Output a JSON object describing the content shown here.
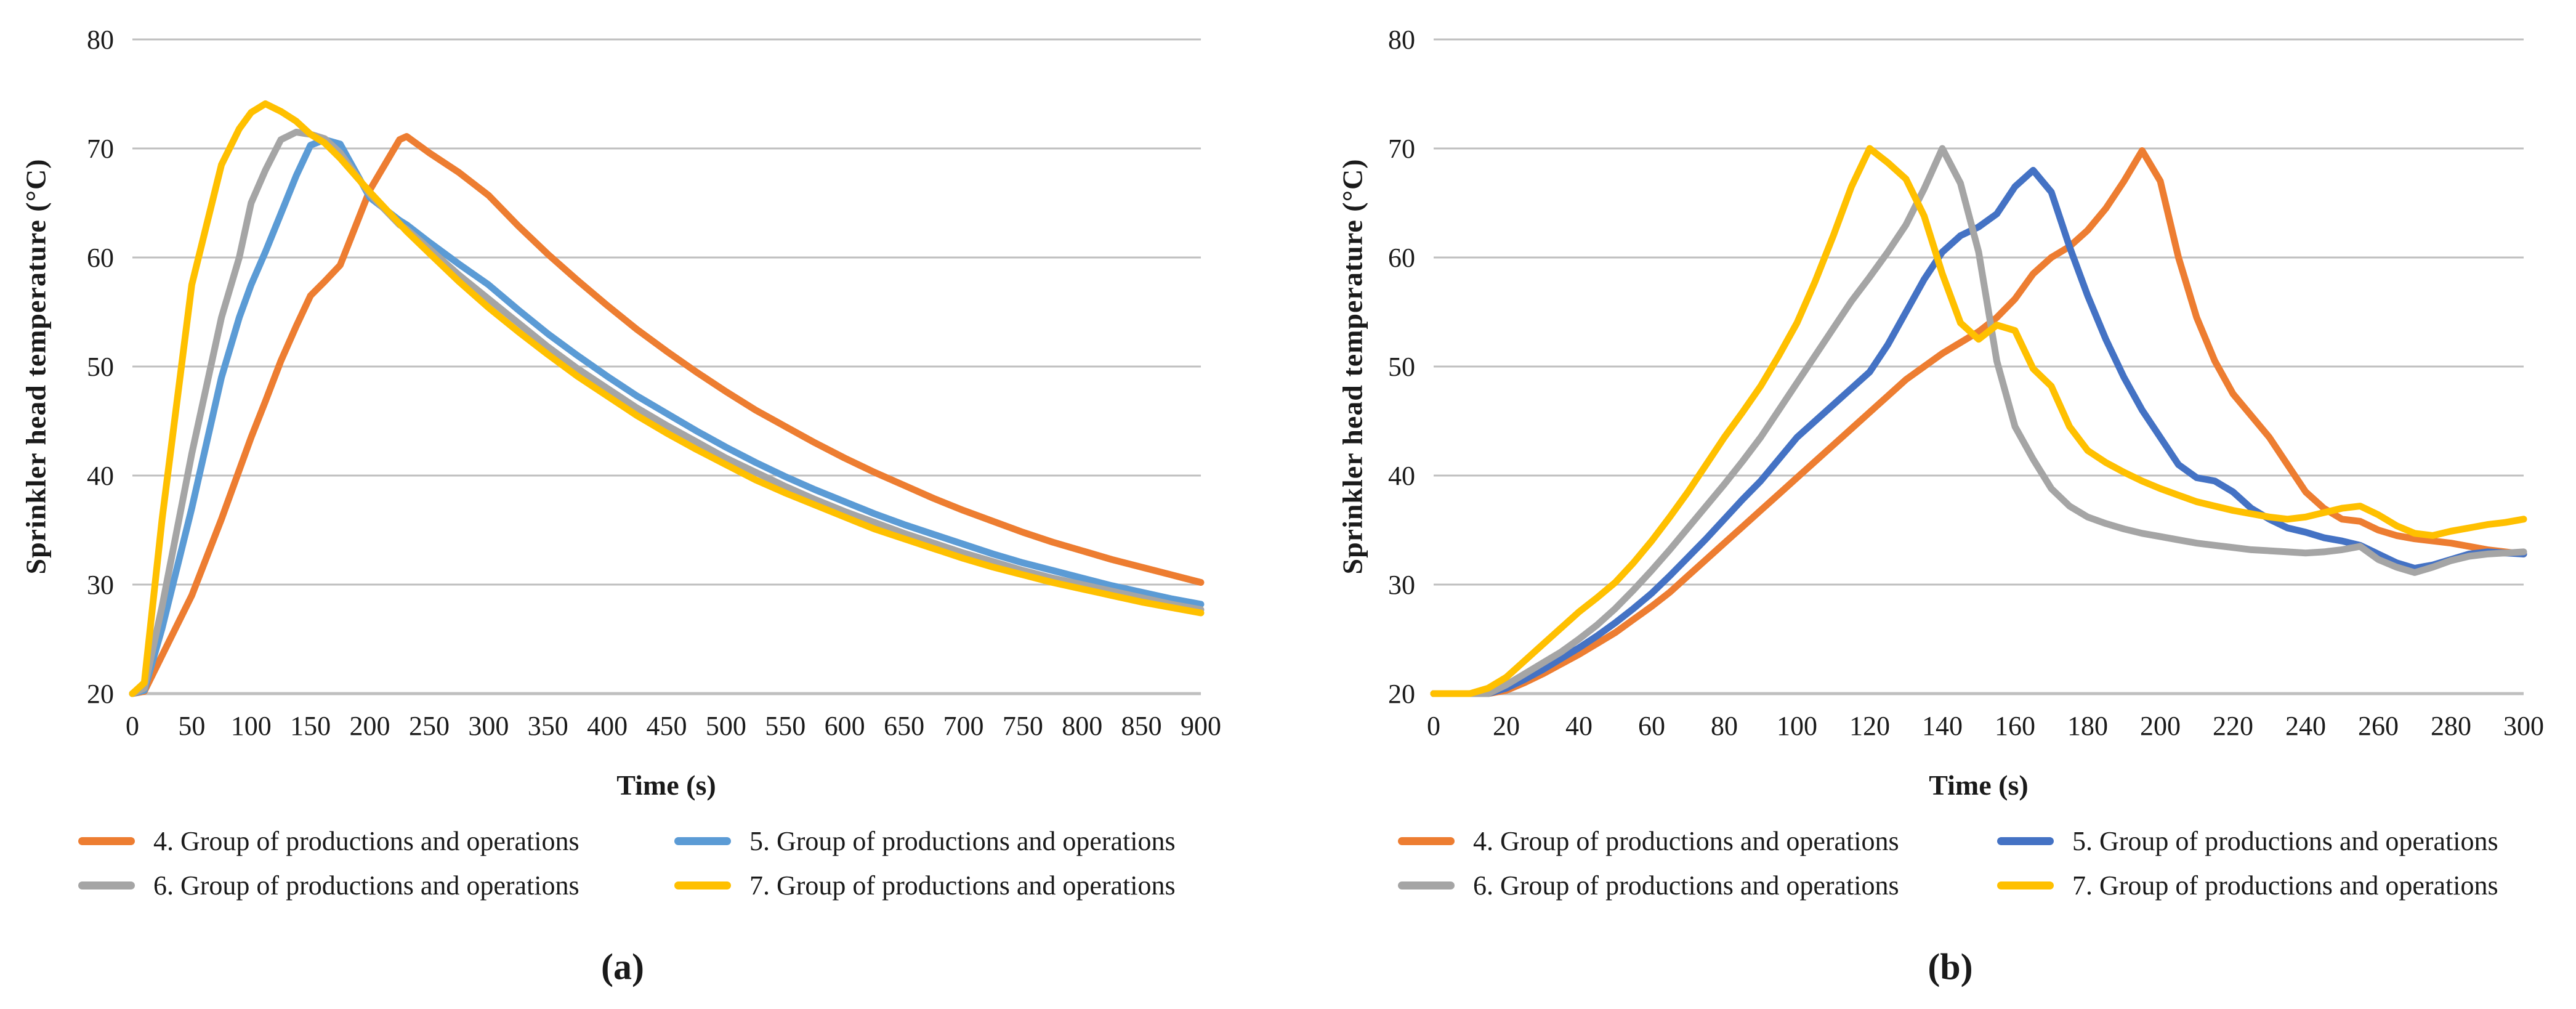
{
  "chart_data": [
    {
      "type": "line",
      "caption": "(a)",
      "xlabel": "Time (s)",
      "ylabel": "Sprinkler head temperature (°C)",
      "xlim": [
        0,
        900
      ],
      "ylim": [
        20,
        80
      ],
      "xticks": [
        0,
        50,
        100,
        150,
        200,
        250,
        300,
        350,
        400,
        450,
        500,
        550,
        600,
        650,
        700,
        750,
        800,
        850,
        900
      ],
      "yticks": [
        20,
        30,
        40,
        50,
        60,
        70,
        80
      ],
      "grid": true,
      "grid_color": "#BFBFBF",
      "legend_position": "bottom",
      "x": [
        0,
        10,
        25,
        50,
        75,
        90,
        100,
        112,
        125,
        138,
        150,
        162,
        175,
        200,
        225,
        231,
        250,
        275,
        300,
        325,
        350,
        375,
        400,
        425,
        450,
        475,
        500,
        525,
        550,
        575,
        600,
        625,
        650,
        675,
        700,
        725,
        750,
        775,
        800,
        825,
        850,
        875,
        900
      ],
      "series": [
        {
          "name": "4. Group of productions and operations",
          "color": "#ED7D31",
          "values": [
            20,
            20.2,
            23.5,
            29,
            36,
            40.5,
            43.5,
            46.8,
            50.5,
            53.7,
            56.5,
            57.8,
            59.3,
            66.2,
            70.8,
            71.1,
            69.6,
            67.8,
            65.7,
            62.9,
            60.3,
            57.9,
            55.6,
            53.4,
            51.4,
            49.5,
            47.7,
            46,
            44.5,
            43,
            41.6,
            40.3,
            39.1,
            37.9,
            36.8,
            35.8,
            34.8,
            33.9,
            33.1,
            32.3,
            31.6,
            30.9,
            30.2
          ]
        },
        {
          "name": "5. Group of productions and operations",
          "color": "#5B9BD5",
          "values": [
            20,
            20.3,
            26,
            37,
            49,
            54.5,
            57.5,
            60.5,
            64,
            67.5,
            70.3,
            70.8,
            70.4,
            65.5,
            63.4,
            63,
            61.4,
            59.4,
            57.5,
            55.2,
            53,
            51,
            49.1,
            47.3,
            45.7,
            44.1,
            42.6,
            41.2,
            39.9,
            38.7,
            37.6,
            36.5,
            35.5,
            34.6,
            33.7,
            32.8,
            32,
            31.3,
            30.6,
            29.9,
            29.3,
            28.7,
            28.2
          ]
        },
        {
          "name": "6. Group of productions and operations",
          "color": "#A5A5A5",
          "values": [
            20,
            20.5,
            28,
            42,
            54.5,
            60,
            65,
            68,
            70.8,
            71.5,
            71.3,
            70.9,
            69.6,
            65.8,
            63,
            62.6,
            60.8,
            58.4,
            56.2,
            54,
            51.8,
            49.8,
            48,
            46.2,
            44.6,
            43.1,
            41.6,
            40.3,
            39,
            37.8,
            36.7,
            35.7,
            34.7,
            33.8,
            32.9,
            32.1,
            31.3,
            30.6,
            30,
            29.4,
            28.8,
            28.2,
            27.7
          ]
        },
        {
          "name": "7. Group of productions and operations",
          "color": "#FFC000",
          "values": [
            20,
            21,
            36,
            57.5,
            68.5,
            71.8,
            73.3,
            74.1,
            73.4,
            72.5,
            71.3,
            70.5,
            69.1,
            66,
            63.1,
            62.4,
            60.4,
            57.8,
            55.4,
            53.2,
            51.1,
            49.1,
            47.3,
            45.5,
            43.9,
            42.4,
            41,
            39.6,
            38.4,
            37.3,
            36.2,
            35.1,
            34.2,
            33.3,
            32.4,
            31.6,
            30.9,
            30.2,
            29.6,
            29,
            28.4,
            27.9,
            27.4
          ]
        }
      ]
    },
    {
      "type": "line",
      "caption": "(b)",
      "xlabel": "Time (s)",
      "ylabel": "Sprinkler head temperature (°C)",
      "xlim": [
        0,
        300
      ],
      "ylim": [
        20,
        80
      ],
      "xticks": [
        0,
        20,
        40,
        60,
        80,
        100,
        120,
        140,
        160,
        180,
        200,
        220,
        240,
        260,
        280,
        300
      ],
      "yticks": [
        20,
        30,
        40,
        50,
        60,
        70,
        80
      ],
      "grid": true,
      "grid_color": "#BFBFBF",
      "legend_position": "bottom",
      "x": [
        0,
        5,
        10,
        15,
        20,
        25,
        30,
        35,
        40,
        45,
        50,
        55,
        60,
        65,
        70,
        75,
        80,
        85,
        90,
        95,
        100,
        105,
        110,
        115,
        120,
        125,
        130,
        135,
        140,
        145,
        150,
        155,
        160,
        165,
        170,
        175,
        180,
        185,
        190,
        195,
        200,
        205,
        210,
        215,
        220,
        225,
        230,
        235,
        240,
        245,
        250,
        255,
        260,
        265,
        270,
        275,
        280,
        285,
        290,
        295,
        300
      ],
      "series": [
        {
          "name": "4. Group of productions and operations",
          "color": "#ED7D31",
          "values": [
            20,
            20,
            20,
            20,
            20.3,
            21,
            21.8,
            22.7,
            23.6,
            24.6,
            25.6,
            26.8,
            28,
            29.3,
            30.8,
            32.3,
            33.8,
            35.3,
            36.8,
            38.3,
            39.8,
            41.3,
            42.8,
            44.3,
            45.8,
            47.3,
            48.8,
            50,
            51.2,
            52.2,
            53.2,
            54.5,
            56.2,
            58.5,
            60,
            61,
            62.5,
            64.5,
            67,
            69.8,
            67,
            60,
            54.5,
            50.5,
            47.5,
            45.5,
            43.5,
            41,
            38.5,
            37,
            36,
            35.8,
            35,
            34.5,
            34.2,
            34,
            33.8,
            33.5,
            33.2,
            33,
            32.8
          ]
        },
        {
          "name": "5. Group of productions and operations",
          "color": "#4472C4",
          "values": [
            20,
            20,
            20,
            20,
            20.5,
            21.3,
            22.2,
            23.2,
            24.2,
            25.3,
            26.5,
            27.8,
            29.2,
            30.8,
            32.5,
            34.2,
            36,
            37.8,
            39.5,
            41.5,
            43.5,
            45,
            46.5,
            48,
            49.5,
            52,
            55,
            58,
            60.5,
            62,
            62.8,
            64,
            66.5,
            68,
            66,
            61,
            56.5,
            52.5,
            49,
            46,
            43.5,
            41,
            39.8,
            39.5,
            38.5,
            37,
            36,
            35.2,
            34.8,
            34.3,
            34,
            33.6,
            32.8,
            32,
            31.5,
            31.8,
            32.3,
            32.8,
            33,
            32.9,
            32.8
          ]
        },
        {
          "name": "6. Group of productions and operations",
          "color": "#A5A5A5",
          "values": [
            20,
            20,
            20,
            20,
            20.8,
            21.8,
            22.8,
            23.8,
            25,
            26.3,
            27.8,
            29.5,
            31.3,
            33.2,
            35.2,
            37.2,
            39.2,
            41.3,
            43.5,
            46,
            48.5,
            51,
            53.5,
            56,
            58.2,
            60.5,
            63,
            66.3,
            70,
            66.8,
            60.5,
            50.5,
            44.5,
            41.5,
            38.8,
            37.2,
            36.2,
            35.6,
            35.1,
            34.7,
            34.4,
            34.1,
            33.8,
            33.6,
            33.4,
            33.2,
            33.1,
            33,
            32.9,
            33,
            33.2,
            33.5,
            32.3,
            31.6,
            31.1,
            31.6,
            32.2,
            32.6,
            32.8,
            32.9,
            33
          ]
        },
        {
          "name": "7. Group of productions and operations",
          "color": "#FFC000",
          "values": [
            20,
            20,
            20,
            20.5,
            21.5,
            23,
            24.5,
            26,
            27.5,
            28.8,
            30.2,
            32,
            34,
            36.2,
            38.5,
            41,
            43.5,
            45.8,
            48.2,
            51,
            54,
            57.8,
            62,
            66.5,
            70,
            68.7,
            67.2,
            63.8,
            58.5,
            54,
            52.5,
            53.8,
            53.3,
            49.8,
            48.2,
            44.5,
            42.3,
            41.2,
            40.3,
            39.5,
            38.8,
            38.2,
            37.6,
            37.2,
            36.8,
            36.5,
            36.2,
            36,
            36.2,
            36.6,
            37,
            37.2,
            36.4,
            35.4,
            34.7,
            34.5,
            34.9,
            35.2,
            35.5,
            35.7,
            36
          ]
        }
      ]
    }
  ]
}
